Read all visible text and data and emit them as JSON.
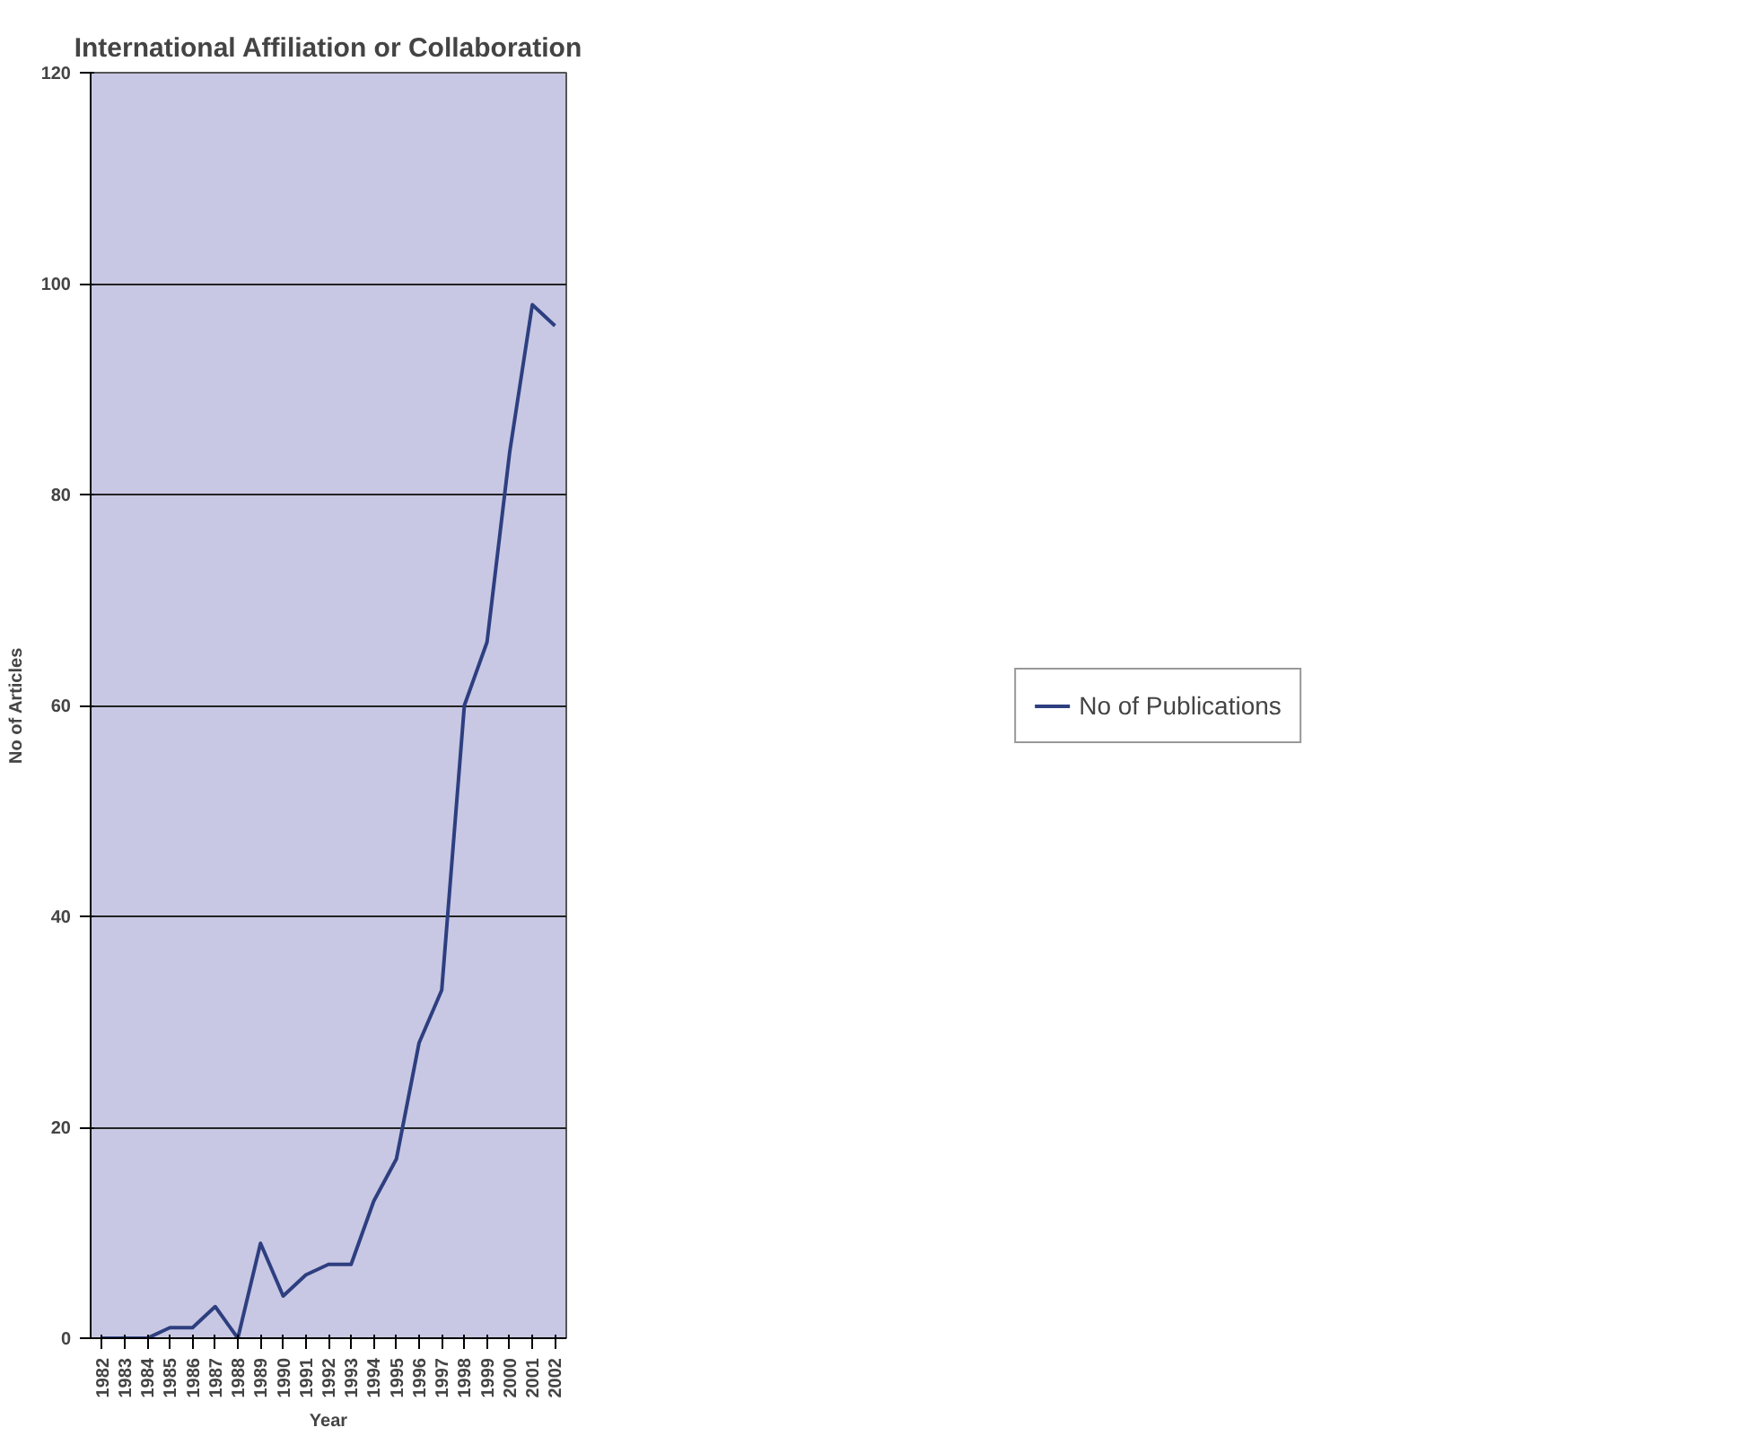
{
  "chart_data": {
    "type": "line",
    "title": "International Affiliation or Collaboration",
    "xlabel": "Year",
    "ylabel": "No of Articles",
    "categories": [
      "1982",
      "1983",
      "1984",
      "1985",
      "1986",
      "1987",
      "1988",
      "1989",
      "1990",
      "1991",
      "1992",
      "1993",
      "1994",
      "1995",
      "1996",
      "1997",
      "1998",
      "1999",
      "2000",
      "2001",
      "2002"
    ],
    "series": [
      {
        "name": "No of Publications",
        "color": "#2e3f80",
        "values": [
          0,
          0,
          0,
          1,
          1,
          3,
          0,
          9,
          4,
          6,
          7,
          7,
          13,
          17,
          28,
          33,
          60,
          66,
          84,
          98,
          96
        ]
      }
    ],
    "ylim": [
      0,
      120
    ],
    "yticks": [
      0,
      20,
      40,
      60,
      80,
      100,
      120
    ],
    "grid": "y",
    "legend": "right",
    "marker": "none",
    "line_style": "solid"
  }
}
